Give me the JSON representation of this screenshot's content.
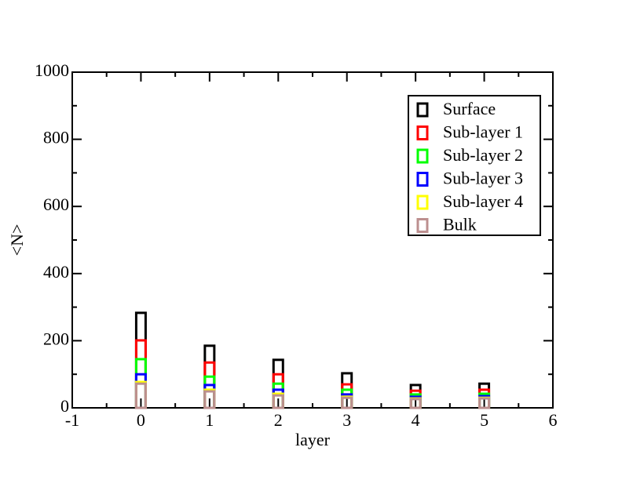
{
  "chart_data": {
    "type": "bar",
    "x_label": "layer",
    "y_label": "<N>",
    "x": [
      0,
      1,
      2,
      3,
      4,
      5
    ],
    "series": [
      {
        "name": "Surface",
        "color": "#000000",
        "values": [
          283,
          185,
          143,
          103,
          68,
          72
        ]
      },
      {
        "name": "Sub-layer 1",
        "color": "#ff0000",
        "values": [
          201,
          135,
          100,
          70,
          51,
          54
        ]
      },
      {
        "name": "Sub-layer 2",
        "color": "#00ff00",
        "values": [
          145,
          93,
          72,
          54,
          40,
          42
        ]
      },
      {
        "name": "Sub-layer 3",
        "color": "#0000ff",
        "values": [
          100,
          68,
          54,
          40,
          33,
          35
        ]
      },
      {
        "name": "Sub-layer 4",
        "color": "#ffff00",
        "values": [
          77,
          54,
          42,
          33,
          28,
          30
        ]
      },
      {
        "name": "Bulk",
        "color": "#bc8f8f",
        "values": [
          72,
          49,
          37,
          30,
          26,
          28
        ]
      }
    ],
    "xlim": [
      -1,
      6
    ],
    "xticks": [
      -1,
      0,
      1,
      2,
      3,
      4,
      5,
      6
    ],
    "xminorticks": [
      -0.5,
      0.5,
      1.5,
      2.5,
      3.5,
      4.5,
      5.5
    ],
    "ylim": [
      0,
      1000
    ],
    "yticks": [
      0,
      200,
      400,
      600,
      800,
      1000
    ],
    "yminorticks": [
      100,
      300,
      500,
      700,
      900
    ],
    "legend": "upper-right"
  }
}
